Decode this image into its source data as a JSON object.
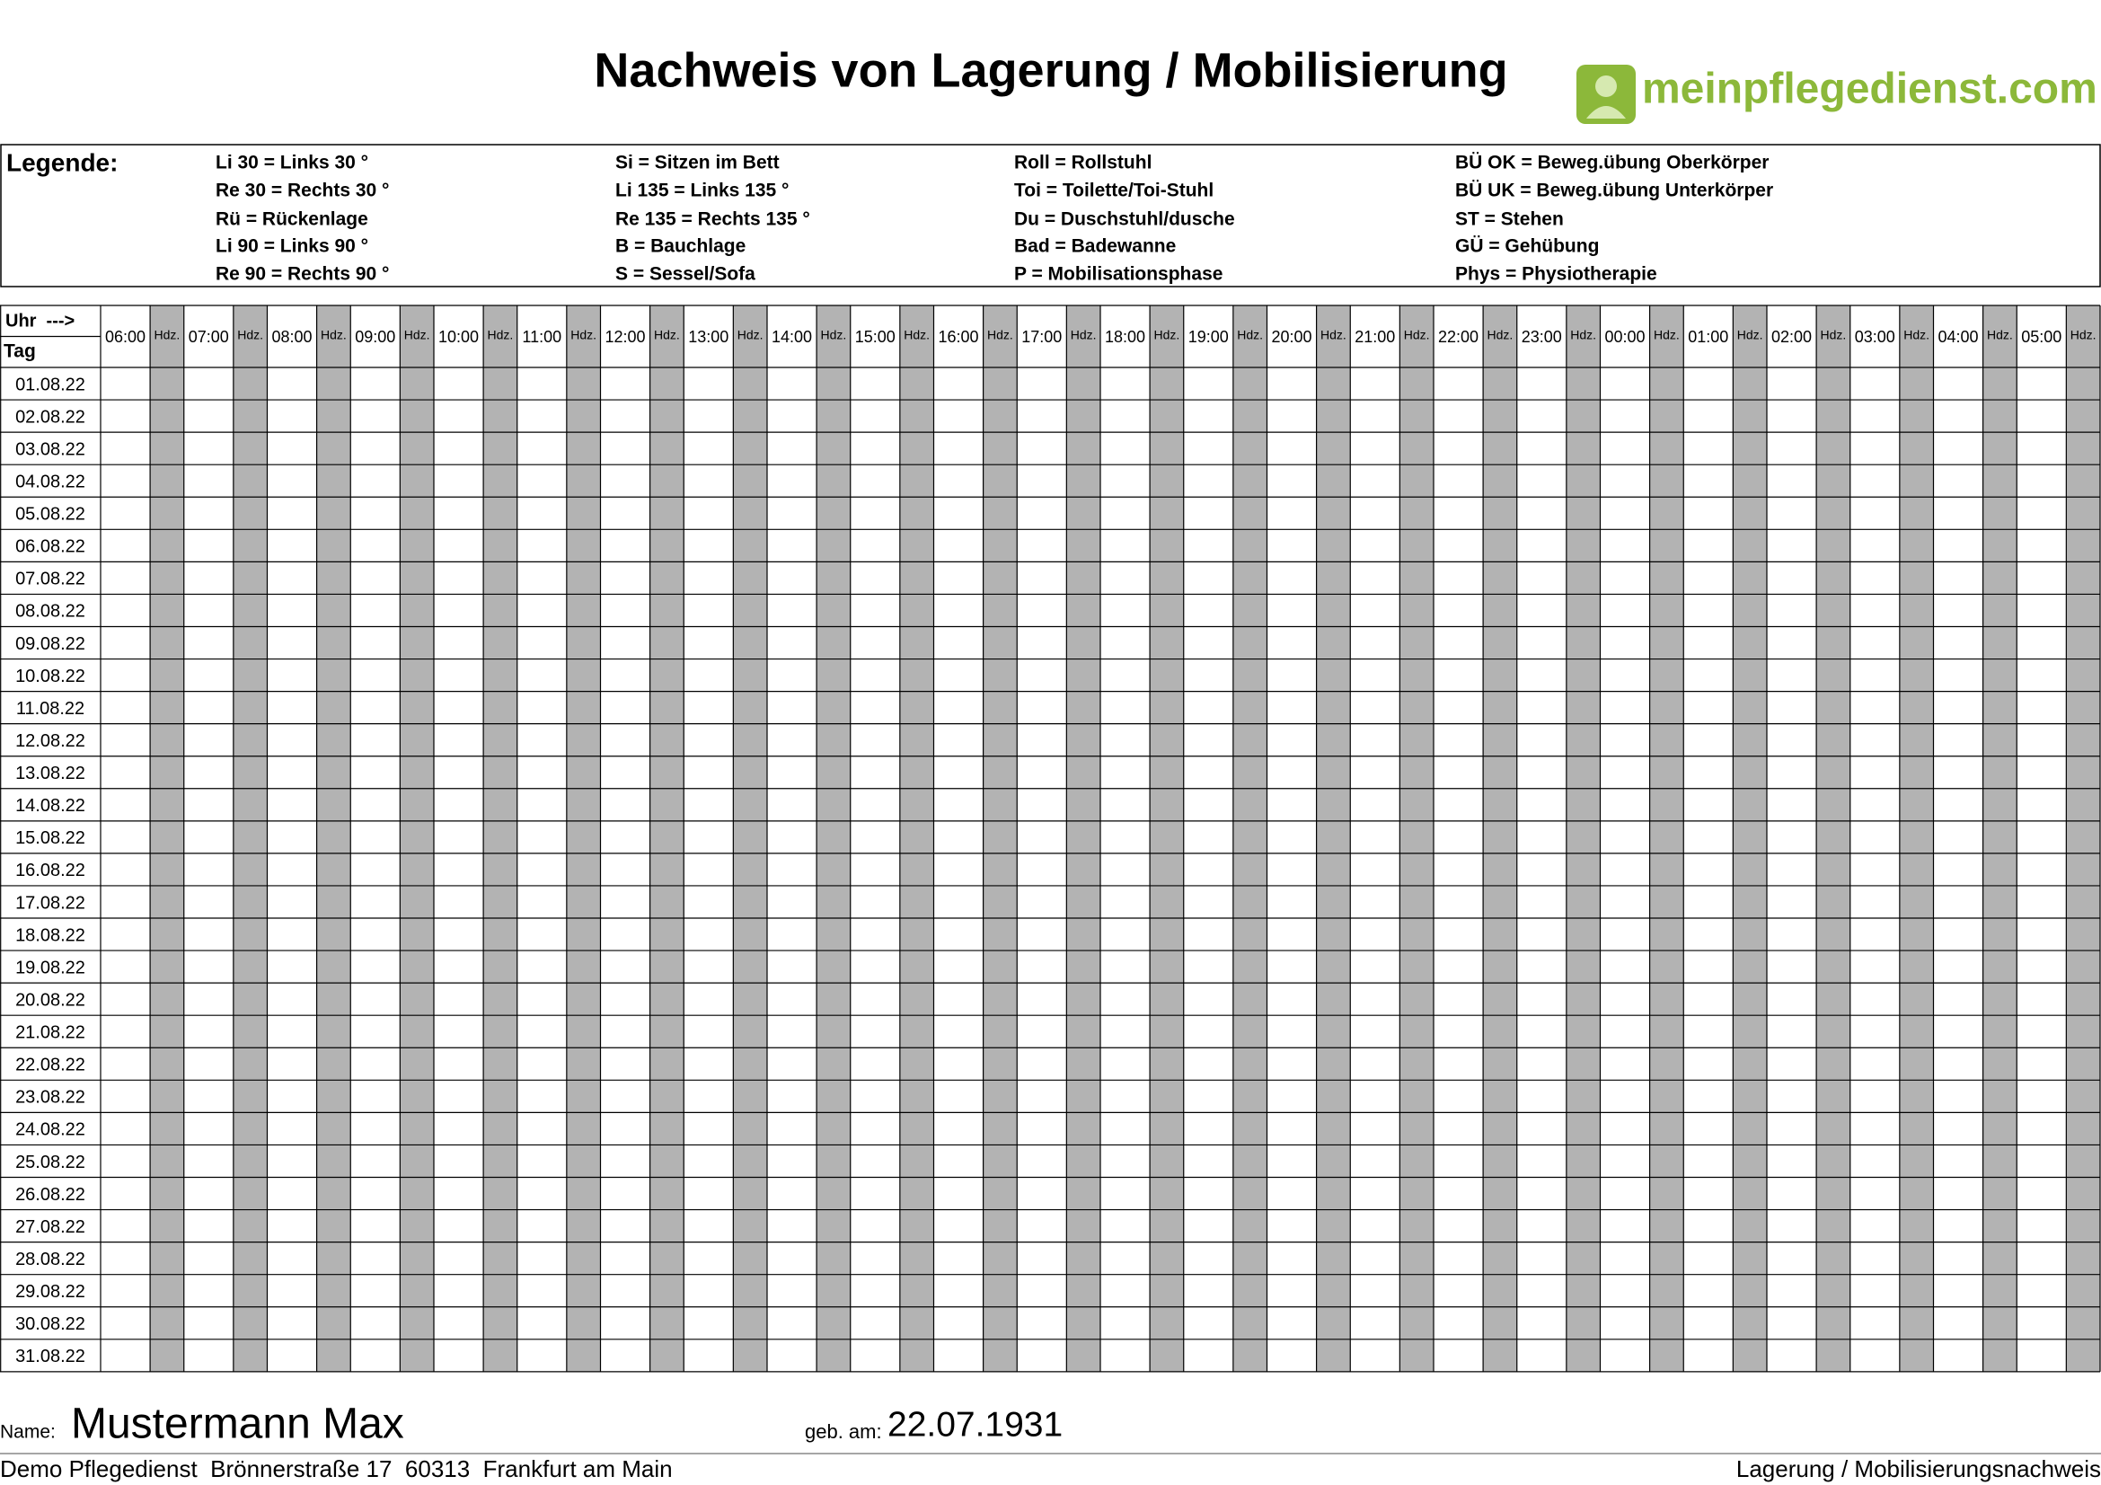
{
  "header": {
    "title": "Nachweis von Lagerung / Mobilisierung",
    "logo": "meinpflegedienst.com"
  },
  "legend": {
    "title": "Legende:",
    "columns": [
      [
        "Li 30 = Links 30 °",
        "Re 30 = Rechts 30 °",
        "Rü = Rückenlage",
        "Li 90 = Links 90 °",
        "Re 90 = Rechts 90 °"
      ],
      [
        "Si = Sitzen im Bett",
        "Li 135 = Links 135 °",
        "Re 135 = Rechts 135 °",
        "B = Bauchlage",
        "S = Sessel/Sofa"
      ],
      [
        "Roll = Rollstuhl",
        "Toi = Toilette/Toi-Stuhl",
        "Du = Duschstuhl/dusche",
        "Bad = Badewanne",
        "P = Mobilisationsphase"
      ],
      [
        "BÜ OK = Beweg.übung Oberkörper",
        "BÜ UK = Beweg.übung Unterkörper",
        "ST = Stehen",
        "GÜ = Gehübung",
        "Phys = Physiotherapie"
      ]
    ]
  },
  "table": {
    "corner_top": "Uhr  --->",
    "corner_bottom": "Tag",
    "hours": [
      "06:00",
      "07:00",
      "08:00",
      "09:00",
      "10:00",
      "11:00",
      "12:00",
      "13:00",
      "14:00",
      "15:00",
      "16:00",
      "17:00",
      "18:00",
      "19:00",
      "20:00",
      "21:00",
      "22:00",
      "23:00",
      "00:00",
      "01:00",
      "02:00",
      "03:00",
      "04:00",
      "05:00"
    ],
    "sub_label": "Hdz.",
    "dates": [
      "01.08.22",
      "02.08.22",
      "03.08.22",
      "04.08.22",
      "05.08.22",
      "06.08.22",
      "07.08.22",
      "08.08.22",
      "09.08.22",
      "10.08.22",
      "11.08.22",
      "12.08.22",
      "13.08.22",
      "14.08.22",
      "15.08.22",
      "16.08.22",
      "17.08.22",
      "18.08.22",
      "19.08.22",
      "20.08.22",
      "21.08.22",
      "22.08.22",
      "23.08.22",
      "24.08.22",
      "25.08.22",
      "26.08.22",
      "27.08.22",
      "28.08.22",
      "29.08.22",
      "30.08.22",
      "31.08.22"
    ]
  },
  "footer": {
    "name_label": "Name:",
    "name": "Mustermann Max",
    "birth_label": "geb. am:",
    "birth_date": "22.07.1931",
    "address": "Demo Pflegedienst  Brönnerstraße 17  60313  Frankfurt am Main",
    "form_name": "Lagerung / Mobilisierungsnachweis"
  }
}
